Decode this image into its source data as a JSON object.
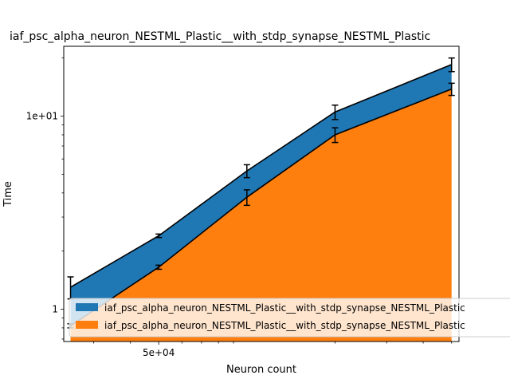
{
  "chart_data": {
    "type": "area",
    "title": "iaf_psc_alpha_neuron_NESTML_Plastic__with_stdp_synapse_NESTML_Plastic",
    "xlabel": "Neuron count",
    "ylabel": "Time",
    "x_scale": "log",
    "y_scale": "log",
    "xlim": [
      23700,
      530000
    ],
    "ylim": [
      0.68,
      23
    ],
    "x_ticks": [
      {
        "value": 50000,
        "label": "5e+04"
      }
    ],
    "y_ticks": [
      {
        "value": 1,
        "label": "1"
      },
      {
        "value": 10,
        "label": "1e+01"
      }
    ],
    "x": [
      25000,
      50000,
      100000,
      200000,
      500000
    ],
    "series": [
      {
        "name": "iaf_psc_alpha_neuron_NESTML_Plastic__with_stdp_synapse_NESTML_Plastic",
        "color": "#1f77b4",
        "values": [
          1.3,
          2.4,
          5.2,
          10.5,
          18.5
        ],
        "errors": [
          0.17,
          0.05,
          0.4,
          0.9,
          1.5
        ]
      },
      {
        "name": "iaf_psc_alpha_neuron_NESTML_Plastic__with_stdp_synapse_NESTML_Plastic",
        "color": "#ff7f0e",
        "values": [
          0.82,
          1.65,
          3.8,
          8.0,
          13.8
        ],
        "errors": [
          0.02,
          0.04,
          0.35,
          0.7,
          1.0
        ]
      }
    ],
    "legend_position": "lower-right",
    "grid": false
  }
}
